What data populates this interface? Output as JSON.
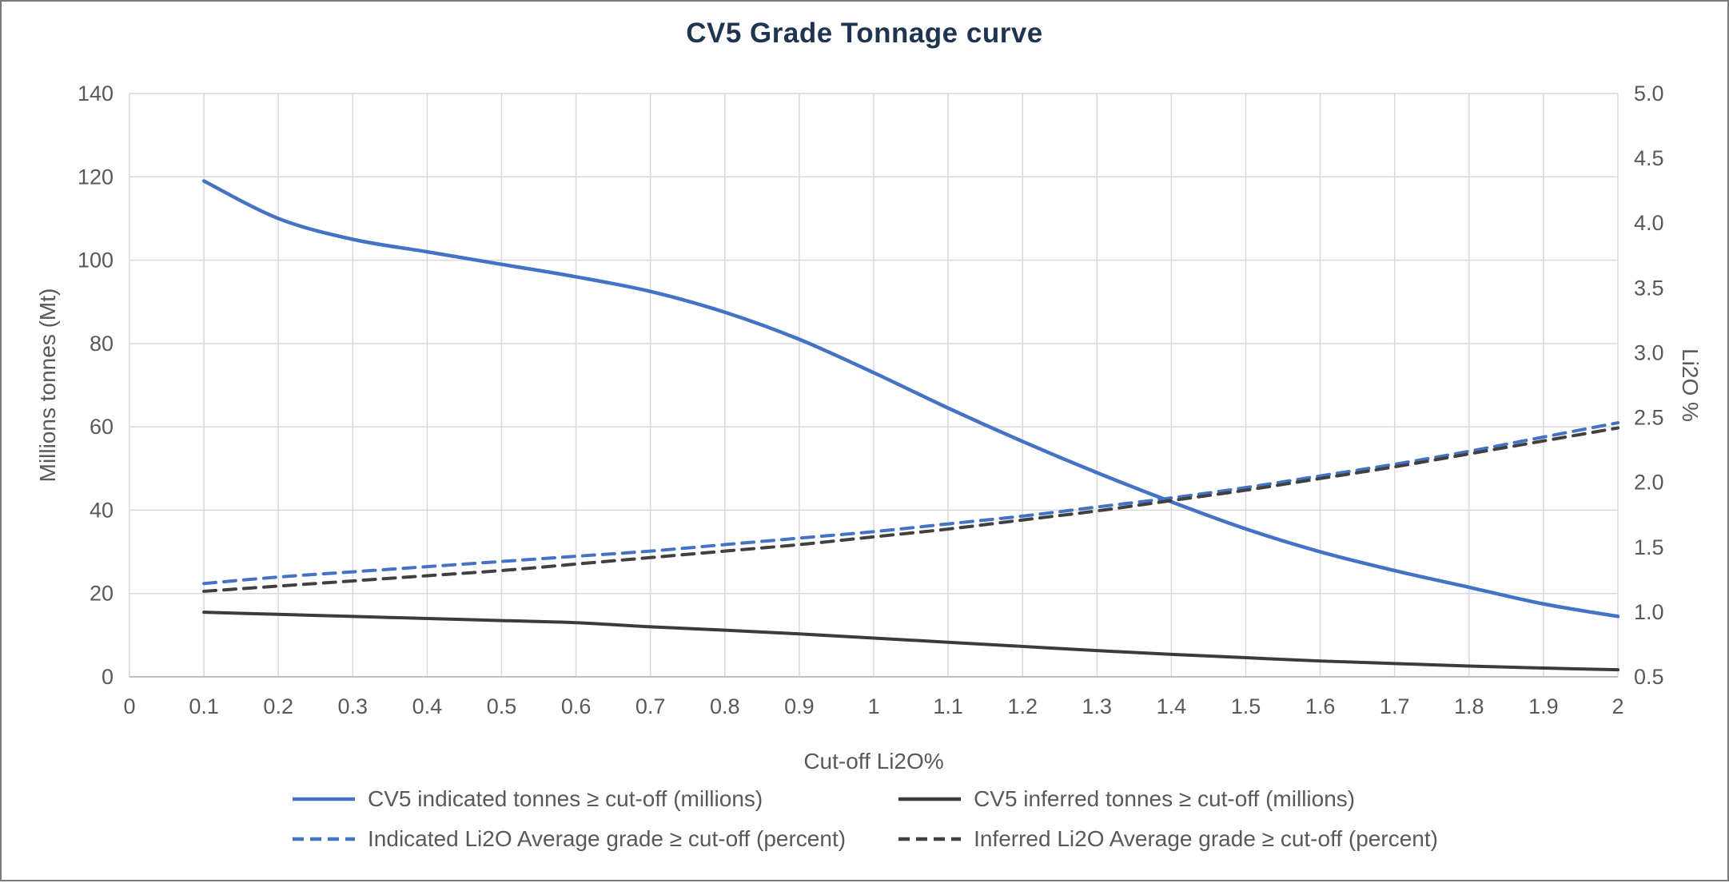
{
  "chart_data": {
    "type": "line",
    "title": "CV5 Grade Tonnage curve",
    "xlabel": "Cut-off Li2O%",
    "ylabel_left": "Millions tonnes (Mt)",
    "ylabel_right": "Li2O %",
    "grid": true,
    "legend_position": "bottom",
    "xlim": [
      0,
      2
    ],
    "ylim_left": [
      0,
      140
    ],
    "ylim_right": [
      0.5,
      5.0
    ],
    "x_ticks": [
      0,
      0.1,
      0.2,
      0.3,
      0.4,
      0.5,
      0.6,
      0.7,
      0.8,
      0.9,
      1,
      1.1,
      1.2,
      1.3,
      1.4,
      1.5,
      1.6,
      1.7,
      1.8,
      1.9,
      2
    ],
    "x_tick_labels": [
      "0",
      "0.1",
      "0.2",
      "0.3",
      "0.4",
      "0.5",
      "0.6",
      "0.7",
      "0.8",
      "0.9",
      "1",
      "1.1",
      "1.2",
      "1.3",
      "1.4",
      "1.5",
      "1.6",
      "1.7",
      "1.8",
      "1.9",
      "2"
    ],
    "y_ticks_left": [
      0,
      20,
      40,
      60,
      80,
      100,
      120,
      140
    ],
    "y_tick_labels_left": [
      "0",
      "20",
      "40",
      "60",
      "80",
      "100",
      "120",
      "140"
    ],
    "y_ticks_right": [
      0.5,
      1.0,
      1.5,
      2.0,
      2.5,
      3.0,
      3.5,
      4.0,
      4.5,
      5.0
    ],
    "y_tick_labels_right": [
      "0.5",
      "1.0",
      "1.5",
      "2.0",
      "2.5",
      "3.0",
      "3.5",
      "4.0",
      "4.5",
      "5.0"
    ],
    "x": [
      0.1,
      0.2,
      0.3,
      0.4,
      0.5,
      0.6,
      0.7,
      0.8,
      0.9,
      1.0,
      1.1,
      1.2,
      1.3,
      1.4,
      1.5,
      1.6,
      1.7,
      1.8,
      1.9,
      2.0
    ],
    "series": [
      {
        "name": "CV5 indicated tonnes ≥ cut-off (millions)",
        "axis": "left",
        "style": "solid",
        "color": "#4472C4",
        "width": 4.5,
        "values": [
          119,
          110,
          105,
          102,
          99,
          96,
          92.5,
          87.5,
          81,
          73,
          64.5,
          56.5,
          49,
          42,
          35.5,
          30,
          25.5,
          21.5,
          17.5,
          14.5
        ]
      },
      {
        "name": "CV5 inferred tonnes ≥ cut-off (millions)",
        "axis": "left",
        "style": "solid",
        "color": "#3b3b3b",
        "width": 4,
        "values": [
          15.5,
          15,
          14.5,
          14,
          13.5,
          13,
          12,
          11.2,
          10.3,
          9.3,
          8.3,
          7.3,
          6.3,
          5.4,
          4.6,
          3.8,
          3.2,
          2.6,
          2.1,
          1.7
        ]
      },
      {
        "name": "Indicated Li2O Average grade ≥ cut-off (percent)",
        "axis": "right",
        "style": "dashed",
        "color": "#4472C4",
        "width": 4,
        "values": [
          1.22,
          1.27,
          1.31,
          1.35,
          1.39,
          1.43,
          1.47,
          1.52,
          1.57,
          1.62,
          1.68,
          1.74,
          1.81,
          1.88,
          1.96,
          2.05,
          2.14,
          2.24,
          2.35,
          2.46
        ]
      },
      {
        "name": "Inferred Li2O Average grade ≥ cut-off (percent)",
        "axis": "right",
        "style": "dashed",
        "color": "#404040",
        "width": 4,
        "values": [
          1.16,
          1.2,
          1.24,
          1.28,
          1.32,
          1.37,
          1.42,
          1.47,
          1.52,
          1.58,
          1.64,
          1.71,
          1.78,
          1.86,
          1.94,
          2.03,
          2.12,
          2.22,
          2.32,
          2.42
        ]
      }
    ]
  },
  "colors": {
    "title": "#1f3450",
    "axis_text": "#595959",
    "grid": "#d9d9d9",
    "axis_line": "#bfbfbf",
    "frame_border": "#7a7a7a"
  }
}
